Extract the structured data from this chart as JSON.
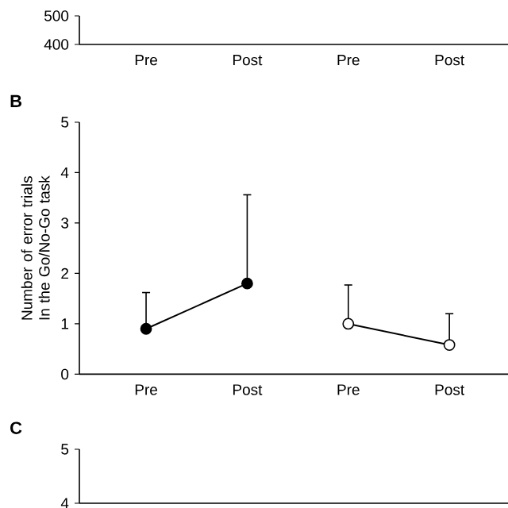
{
  "chart_data": [
    {
      "type": "line",
      "categories": [
        "Pre",
        "Post",
        "Pre",
        "Post"
      ],
      "values": [
        null,
        null,
        null,
        null
      ],
      "ylim": [
        400,
        500
      ],
      "yticks": [
        400,
        500
      ]
    },
    {
      "type": "line",
      "title": "B",
      "ylabel": "Number of error trials In the Go/No-Go task",
      "categories": [
        "Pre",
        "Post",
        "Pre",
        "Post"
      ],
      "series": [
        {
          "color": "#000000",
          "values": [
            0.9,
            1.8,
            null,
            null
          ],
          "errors": [
            [
              0.9,
              1.62
            ],
            [
              1.8,
              3.56
            ],
            null,
            null
          ]
        },
        {
          "color": "#ffffff",
          "values": [
            null,
            null,
            1.0,
            0.58
          ],
          "errors": [
            null,
            null,
            [
              1.0,
              1.77
            ],
            [
              0.58,
              1.2
            ]
          ]
        }
      ],
      "ylim": [
        0,
        5
      ],
      "yticks": [
        0,
        1,
        2,
        3,
        4,
        5
      ],
      "marker": "circle",
      "line_style": "solid"
    },
    {
      "type": "line",
      "title": "C",
      "categories": [
        null,
        null,
        null,
        null
      ],
      "values": [
        null,
        null,
        null,
        null
      ],
      "ylim": [
        4,
        5
      ],
      "yticks": [
        4,
        5
      ],
      "tick_labels": "y"
    }
  ]
}
